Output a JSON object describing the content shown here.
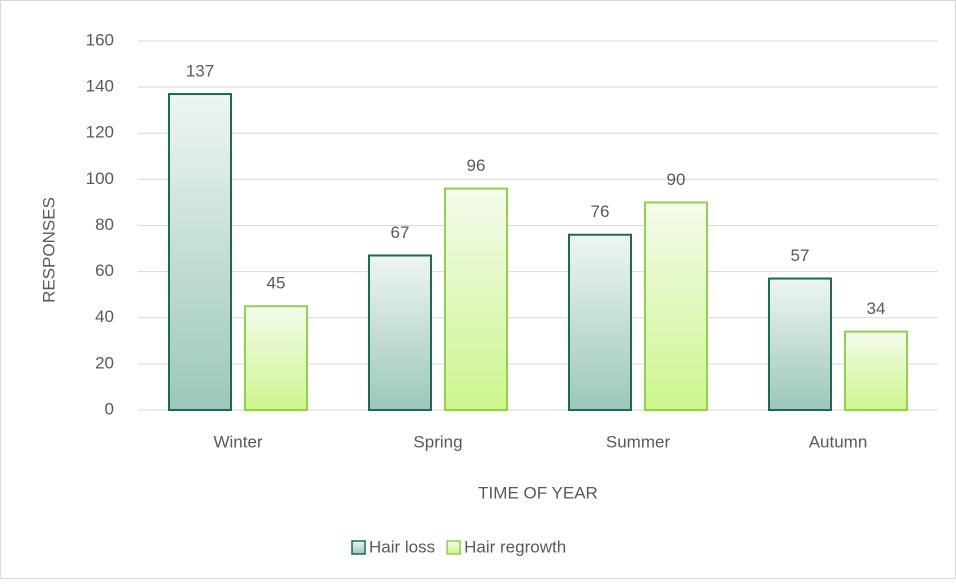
{
  "chart_data": {
    "type": "bar",
    "x_label": "TIME OF YEAR",
    "y_label": "RESPONSES",
    "categories": [
      "Winter",
      "Spring",
      "Summer",
      "Autumn"
    ],
    "series": [
      {
        "name": "Hair loss",
        "color": "#1a6b55",
        "values": [
          137,
          67,
          76,
          57
        ]
      },
      {
        "name": "Hair regrowth",
        "color": "#92d050",
        "values": [
          45,
          96,
          90,
          34
        ]
      }
    ],
    "ylim": [
      0,
      160
    ],
    "yticks": [
      0,
      20,
      40,
      60,
      80,
      100,
      120,
      140,
      160
    ],
    "grid": true,
    "legend": "bottom"
  }
}
